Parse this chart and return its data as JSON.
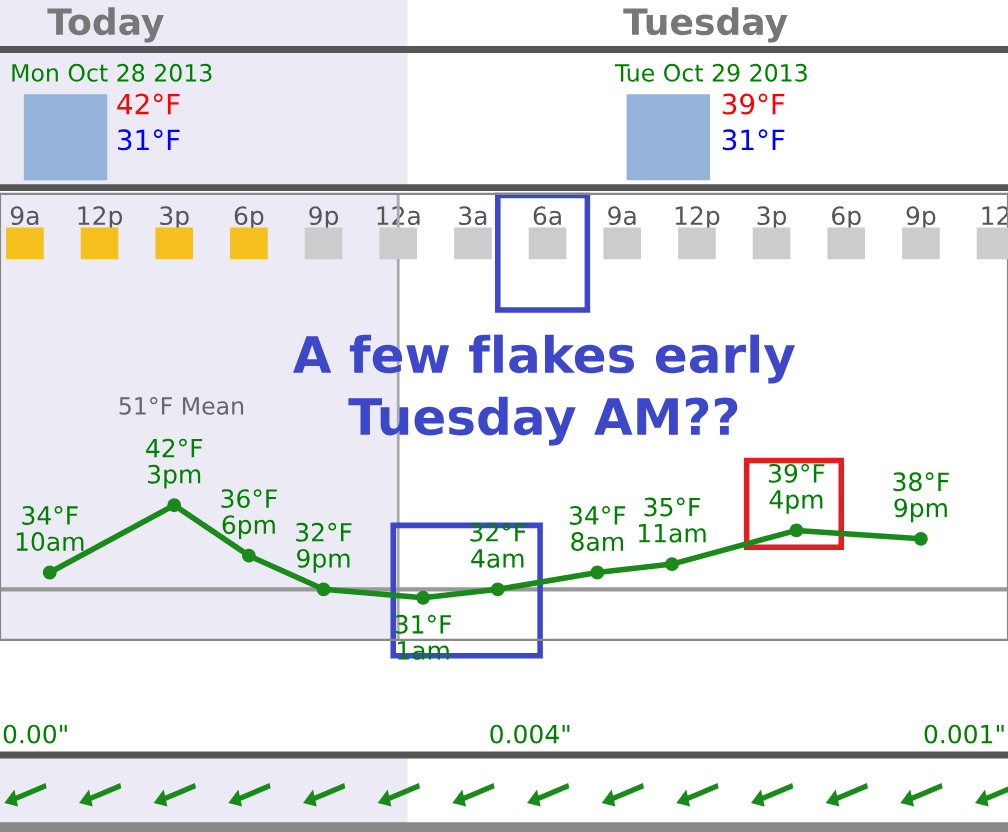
{
  "chart_data": {
    "type": "line",
    "x": [
      "2013-10-28T10:00",
      "2013-10-28T15:00",
      "2013-10-28T18:00",
      "2013-10-28T21:00",
      "2013-10-29T01:00",
      "2013-10-29T04:00",
      "2013-10-29T08:00",
      "2013-10-29T11:00",
      "2013-10-29T16:00",
      "2013-10-29T21:00"
    ],
    "series": [
      {
        "color": "#1a8a1a",
        "values": [
          34,
          42,
          36,
          32,
          31,
          32,
          34,
          35,
          39,
          38
        ],
        "value_labels": [
          "34°F\n10am",
          "42°F\n3pm",
          "36°F\n6pm",
          "32°F\n9pm",
          "31°F\n1am",
          "32°F\n4am",
          "34°F\n8am",
          "35°F\n11am",
          "39°F\n4pm",
          "38°F\n9pm"
        ]
      }
    ],
    "xlim": [
      "2013-10-28T08:00",
      "2013-10-30T00:30"
    ],
    "ylim": [
      26,
      79
    ],
    "xticks": [
      {
        "value": "2013-10-28T09:00",
        "label": "9a"
      },
      {
        "value": "2013-10-28T12:00",
        "label": "12p"
      },
      {
        "value": "2013-10-28T15:00",
        "label": "3p"
      },
      {
        "value": "2013-10-28T18:00",
        "label": "6p"
      },
      {
        "value": "2013-10-28T21:00",
        "label": "9p"
      },
      {
        "value": "2013-10-29T00:00",
        "label": "12a"
      },
      {
        "value": "2013-10-29T03:00",
        "label": "3a"
      },
      {
        "value": "2013-10-29T06:00",
        "label": "6a"
      },
      {
        "value": "2013-10-29T09:00",
        "label": "9a"
      },
      {
        "value": "2013-10-29T12:00",
        "label": "12p"
      },
      {
        "value": "2013-10-29T15:00",
        "label": "3p"
      },
      {
        "value": "2013-10-29T18:00",
        "label": "6p"
      },
      {
        "value": "2013-10-29T21:00",
        "label": "9p"
      },
      {
        "value": "2013-10-30T00:00",
        "label": "12"
      }
    ],
    "tick_labels": "x",
    "marker": "circle",
    "line_style": "solid",
    "grid": false,
    "legend": false,
    "ref_lines": [
      {
        "axis": "x",
        "value": "2013-10-29T00:00",
        "color": "#aaaaaa"
      },
      {
        "axis": "y",
        "value": 32,
        "color": "#999999"
      }
    ],
    "bands": [
      {
        "axis": "x",
        "from": "2013-10-28T08:00",
        "to": "2013-10-29T00:00",
        "color": "#ecebf5"
      }
    ],
    "annotations": [
      "Today",
      "Tuesday",
      "Mon Oct 28 2013",
      "42°F",
      "31°F",
      "Tue Oct 29 2013",
      "39°F",
      "31°F",
      "A few flakes early\nTuesday AM??",
      "51°F Mean",
      "0.00\"",
      "0.004\"",
      "0.001\""
    ]
  }
}
